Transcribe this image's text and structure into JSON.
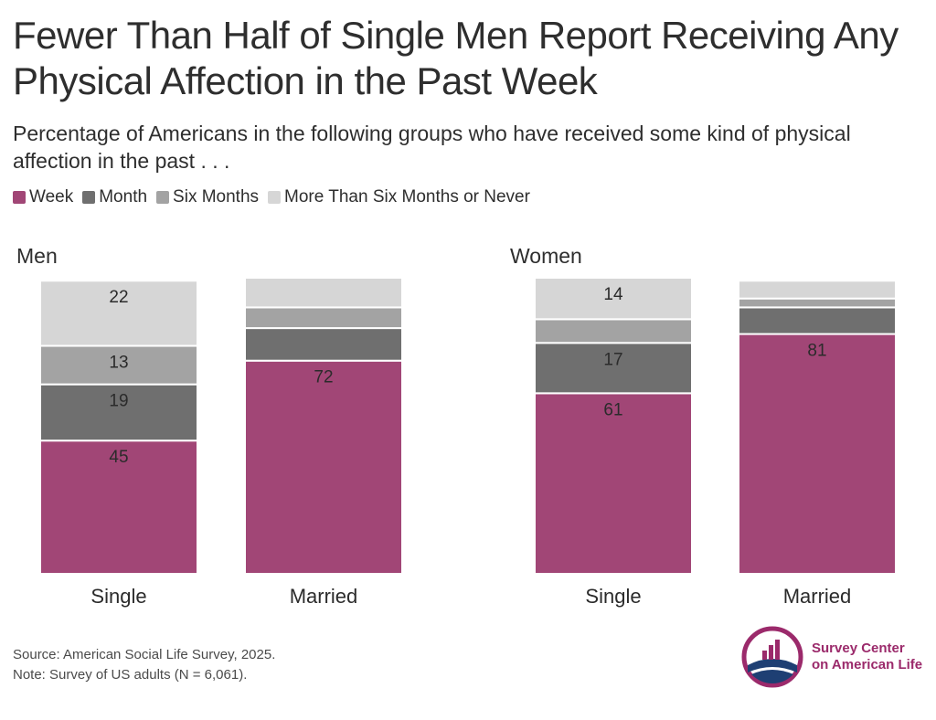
{
  "title": "Fewer Than Half of Single Men Report Receiving Any Physical Affection in the Past Week",
  "subtitle": "Percentage of Americans in the following groups who have received some kind of physical affection in the past . . .",
  "legend": [
    {
      "label": "Week",
      "color": "#a14676"
    },
    {
      "label": "Month",
      "color": "#6f6f6f"
    },
    {
      "label": "Six Months",
      "color": "#a3a3a3"
    },
    {
      "label": "More Than Six Months or Never",
      "color": "#d6d6d6"
    }
  ],
  "chart_data": [
    {
      "type": "bar",
      "stacked": true,
      "title": "Men",
      "categories": [
        "Single",
        "Married"
      ],
      "series": [
        {
          "name": "Week",
          "values": [
            45,
            72
          ],
          "labels": [
            "45",
            "72"
          ]
        },
        {
          "name": "Month",
          "values": [
            19,
            11
          ],
          "labels": [
            "19",
            ""
          ]
        },
        {
          "name": "Six Months",
          "values": [
            13,
            7
          ],
          "labels": [
            "13",
            ""
          ]
        },
        {
          "name": "More Than Six Months or Never",
          "values": [
            22,
            10
          ],
          "labels": [
            "22",
            ""
          ]
        }
      ],
      "ylim": [
        0,
        100
      ]
    },
    {
      "type": "bar",
      "stacked": true,
      "title": "Women",
      "categories": [
        "Single",
        "Married"
      ],
      "series": [
        {
          "name": "Week",
          "values": [
            61,
            81
          ],
          "labels": [
            "61",
            "81"
          ]
        },
        {
          "name": "Month",
          "values": [
            17,
            9
          ],
          "labels": [
            "17",
            ""
          ]
        },
        {
          "name": "Six Months",
          "values": [
            8,
            3
          ],
          "labels": [
            "",
            ""
          ]
        },
        {
          "name": "More Than Six Months or Never",
          "values": [
            14,
            6
          ],
          "labels": [
            "14",
            ""
          ]
        }
      ],
      "ylim": [
        0,
        100
      ]
    }
  ],
  "footer": {
    "source": "Source: American Social Life Survey, 2025.",
    "note": "Note: Survey of US adults (N = 6,061)."
  },
  "logo": {
    "line1": "Survey Center",
    "line2": "on American Life"
  }
}
